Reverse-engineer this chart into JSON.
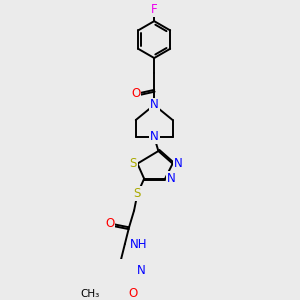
{
  "bg_color": "#ebebeb",
  "atoms": {
    "F": {
      "color": "#ee00ee",
      "size": 8.5
    },
    "O": {
      "color": "#ff0000",
      "size": 8.5
    },
    "N": {
      "color": "#0000ff",
      "size": 8.5
    },
    "S": {
      "color": "#aaaa00",
      "size": 8.5
    },
    "H": {
      "color": "#008888",
      "size": 8.5
    }
  },
  "bond_color": "#000000",
  "bond_width": 1.4,
  "dbo": 0.018
}
